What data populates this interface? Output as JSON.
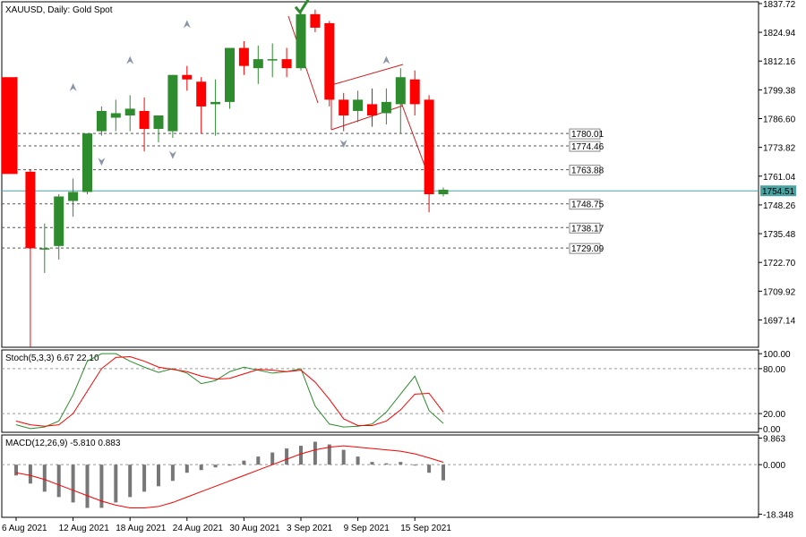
{
  "header": {
    "title": "XAUUSD, Daily:  Gold Spot"
  },
  "colors": {
    "bull": "#2e8b2e",
    "bear": "#ff0000",
    "current_price": "#4aa3a3",
    "stoch_main": "#2e8b2e",
    "stoch_signal": "#ff0000",
    "macd_hist": "#777777",
    "macd_signal": "#ff0000",
    "levels": "#555555",
    "pattern": "#cc2020",
    "check_mark": "#2e8b2e",
    "fractal": "#8a95a8"
  },
  "chart_data": [
    {
      "type": "candlestick",
      "title": "XAUUSD, Daily:  Gold Spot",
      "ylim": [
        1685,
        1838.5
      ],
      "price_ticks": [
        "1837.72",
        "1824.94",
        "1812.16",
        "1799.38",
        "1786.60",
        "1773.82",
        "1761.04",
        "1748.26",
        "1735.48",
        "1722.70",
        "1709.92",
        "1697.14"
      ],
      "current_price": 1754.51,
      "current_price_label": "1754.51",
      "levels": [
        {
          "value": 1780.01,
          "label": "1780.01"
        },
        {
          "value": 1774.46,
          "label": "1774.46"
        },
        {
          "value": 1763.88,
          "label": "1763.88"
        },
        {
          "value": 1748.75,
          "label": "1748.75"
        },
        {
          "value": 1738.17,
          "label": "1738.17"
        },
        {
          "value": 1729.09,
          "label": "1729.09"
        }
      ],
      "date_labels": [
        {
          "index": 0,
          "text": "6 Aug 2021"
        },
        {
          "index": 4,
          "text": "12 Aug 2021"
        },
        {
          "index": 8,
          "text": "18 Aug 2021"
        },
        {
          "index": 12,
          "text": "24 Aug 2021"
        },
        {
          "index": 16,
          "text": "30 Aug 2021"
        },
        {
          "index": 20,
          "text": "3 Sep 2021"
        },
        {
          "index": 24,
          "text": "9 Sep 2021"
        },
        {
          "index": 28,
          "text": "15 Sep 2021"
        }
      ],
      "candles": [
        {
          "o": 1805,
          "h": 1805,
          "l": 1762,
          "c": 1762
        },
        {
          "o": 1763,
          "h": 1764,
          "l": 1685,
          "c": 1729
        },
        {
          "o": 1729,
          "h": 1740,
          "l": 1718,
          "c": 1729
        },
        {
          "o": 1730,
          "h": 1753,
          "l": 1724,
          "c": 1752
        },
        {
          "o": 1750,
          "h": 1760,
          "l": 1743,
          "c": 1754
        },
        {
          "o": 1754,
          "h": 1780,
          "l": 1753,
          "c": 1780
        },
        {
          "o": 1781,
          "h": 1792,
          "l": 1779,
          "c": 1790
        },
        {
          "o": 1787,
          "h": 1795,
          "l": 1781,
          "c": 1789
        },
        {
          "o": 1788,
          "h": 1797,
          "l": 1781,
          "c": 1791
        },
        {
          "o": 1790,
          "h": 1796,
          "l": 1772,
          "c": 1782
        },
        {
          "o": 1782,
          "h": 1787,
          "l": 1776,
          "c": 1788
        },
        {
          "o": 1781,
          "h": 1806,
          "l": 1778,
          "c": 1806
        },
        {
          "o": 1806,
          "h": 1810,
          "l": 1799,
          "c": 1804
        },
        {
          "o": 1803,
          "h": 1805,
          "l": 1780,
          "c": 1792
        },
        {
          "o": 1793,
          "h": 1804,
          "l": 1779,
          "c": 1794
        },
        {
          "o": 1794,
          "h": 1818,
          "l": 1791,
          "c": 1818
        },
        {
          "o": 1818,
          "h": 1821,
          "l": 1806,
          "c": 1810
        },
        {
          "o": 1809,
          "h": 1819,
          "l": 1802,
          "c": 1813
        },
        {
          "o": 1813,
          "h": 1820,
          "l": 1805,
          "c": 1813
        },
        {
          "o": 1813,
          "h": 1818,
          "l": 1805,
          "c": 1809
        },
        {
          "o": 1809,
          "h": 1834,
          "l": 1808,
          "c": 1833
        },
        {
          "o": 1833,
          "h": 1835,
          "l": 1825,
          "c": 1827
        },
        {
          "o": 1829,
          "h": 1830,
          "l": 1792,
          "c": 1795
        },
        {
          "o": 1795,
          "h": 1798,
          "l": 1781,
          "c": 1788
        },
        {
          "o": 1790,
          "h": 1799,
          "l": 1785,
          "c": 1795
        },
        {
          "o": 1793,
          "h": 1800,
          "l": 1783,
          "c": 1788
        },
        {
          "o": 1789,
          "h": 1800,
          "l": 1784,
          "c": 1794
        },
        {
          "o": 1793,
          "h": 1809,
          "l": 1780,
          "c": 1805
        },
        {
          "o": 1804,
          "h": 1808,
          "l": 1788,
          "c": 1793
        },
        {
          "o": 1795,
          "h": 1797,
          "l": 1745,
          "c": 1753
        },
        {
          "o": 1753,
          "h": 1756,
          "l": 1752,
          "c": 1755
        }
      ],
      "fractals_up": [
        {
          "index": 4,
          "value": 1800
        },
        {
          "index": 8,
          "value": 1812
        },
        {
          "index": 12,
          "value": 1828
        },
        {
          "index": 26,
          "value": 1812
        }
      ],
      "fractals_down": [
        {
          "index": 6,
          "value": 1768
        },
        {
          "index": 11,
          "value": 1771
        },
        {
          "index": 23,
          "value": 1776
        }
      ],
      "check_mark": {
        "index": 20,
        "value": 1837
      }
    },
    {
      "type": "line",
      "title": "Stoch(5,3,3) 6.67 22.10",
      "ylim": [
        -5,
        105
      ],
      "ticks": [
        {
          "value": 100,
          "label": "100.00"
        },
        {
          "value": 80,
          "label": "80.00"
        },
        {
          "value": 20,
          "label": "20.00"
        },
        {
          "value": 0,
          "label": "0.00"
        }
      ],
      "levels": [
        80,
        20
      ],
      "series": [
        {
          "name": "main",
          "values": [
            5,
            0,
            2,
            10,
            45,
            90,
            100,
            100,
            90,
            82,
            75,
            80,
            74,
            60,
            64,
            76,
            82,
            78,
            74,
            76,
            80,
            30,
            6,
            2,
            3,
            6,
            22,
            46,
            70,
            24,
            7
          ]
        },
        {
          "name": "signal",
          "values": [
            10,
            5,
            3,
            5,
            20,
            50,
            80,
            95,
            96,
            90,
            82,
            79,
            76,
            70,
            66,
            67,
            73,
            79,
            78,
            76,
            78,
            62,
            39,
            13,
            4,
            4,
            10,
            25,
            46,
            47,
            22
          ]
        }
      ]
    },
    {
      "type": "bar",
      "title": "MACD(12,26,9) -5.810 0.883",
      "ylim": [
        -19.5,
        11
      ],
      "ticks": [
        {
          "value": 9.863,
          "label": "9.863"
        },
        {
          "value": 0,
          "label": "0.000"
        },
        {
          "value": -18.348,
          "label": "-18.348"
        }
      ],
      "histogram": [
        -4,
        -7,
        -10,
        -12,
        -14,
        -16,
        -16,
        -14,
        -12,
        -10,
        -8,
        -6,
        -3,
        -2,
        -1,
        0,
        1.5,
        3,
        4.5,
        6,
        7,
        8.5,
        7.5,
        5.5,
        3,
        1,
        0.5,
        1,
        0,
        -3,
        -5.8
      ],
      "signal": [
        -3,
        -4,
        -5.5,
        -7.5,
        -9.5,
        -11.5,
        -13.5,
        -15,
        -16,
        -16,
        -15.5,
        -14,
        -12,
        -10,
        -8,
        -6,
        -4,
        -2,
        0,
        2,
        4,
        5.5,
        6.5,
        7,
        6.5,
        6,
        5.5,
        5,
        4,
        2.5,
        0.883
      ]
    }
  ]
}
